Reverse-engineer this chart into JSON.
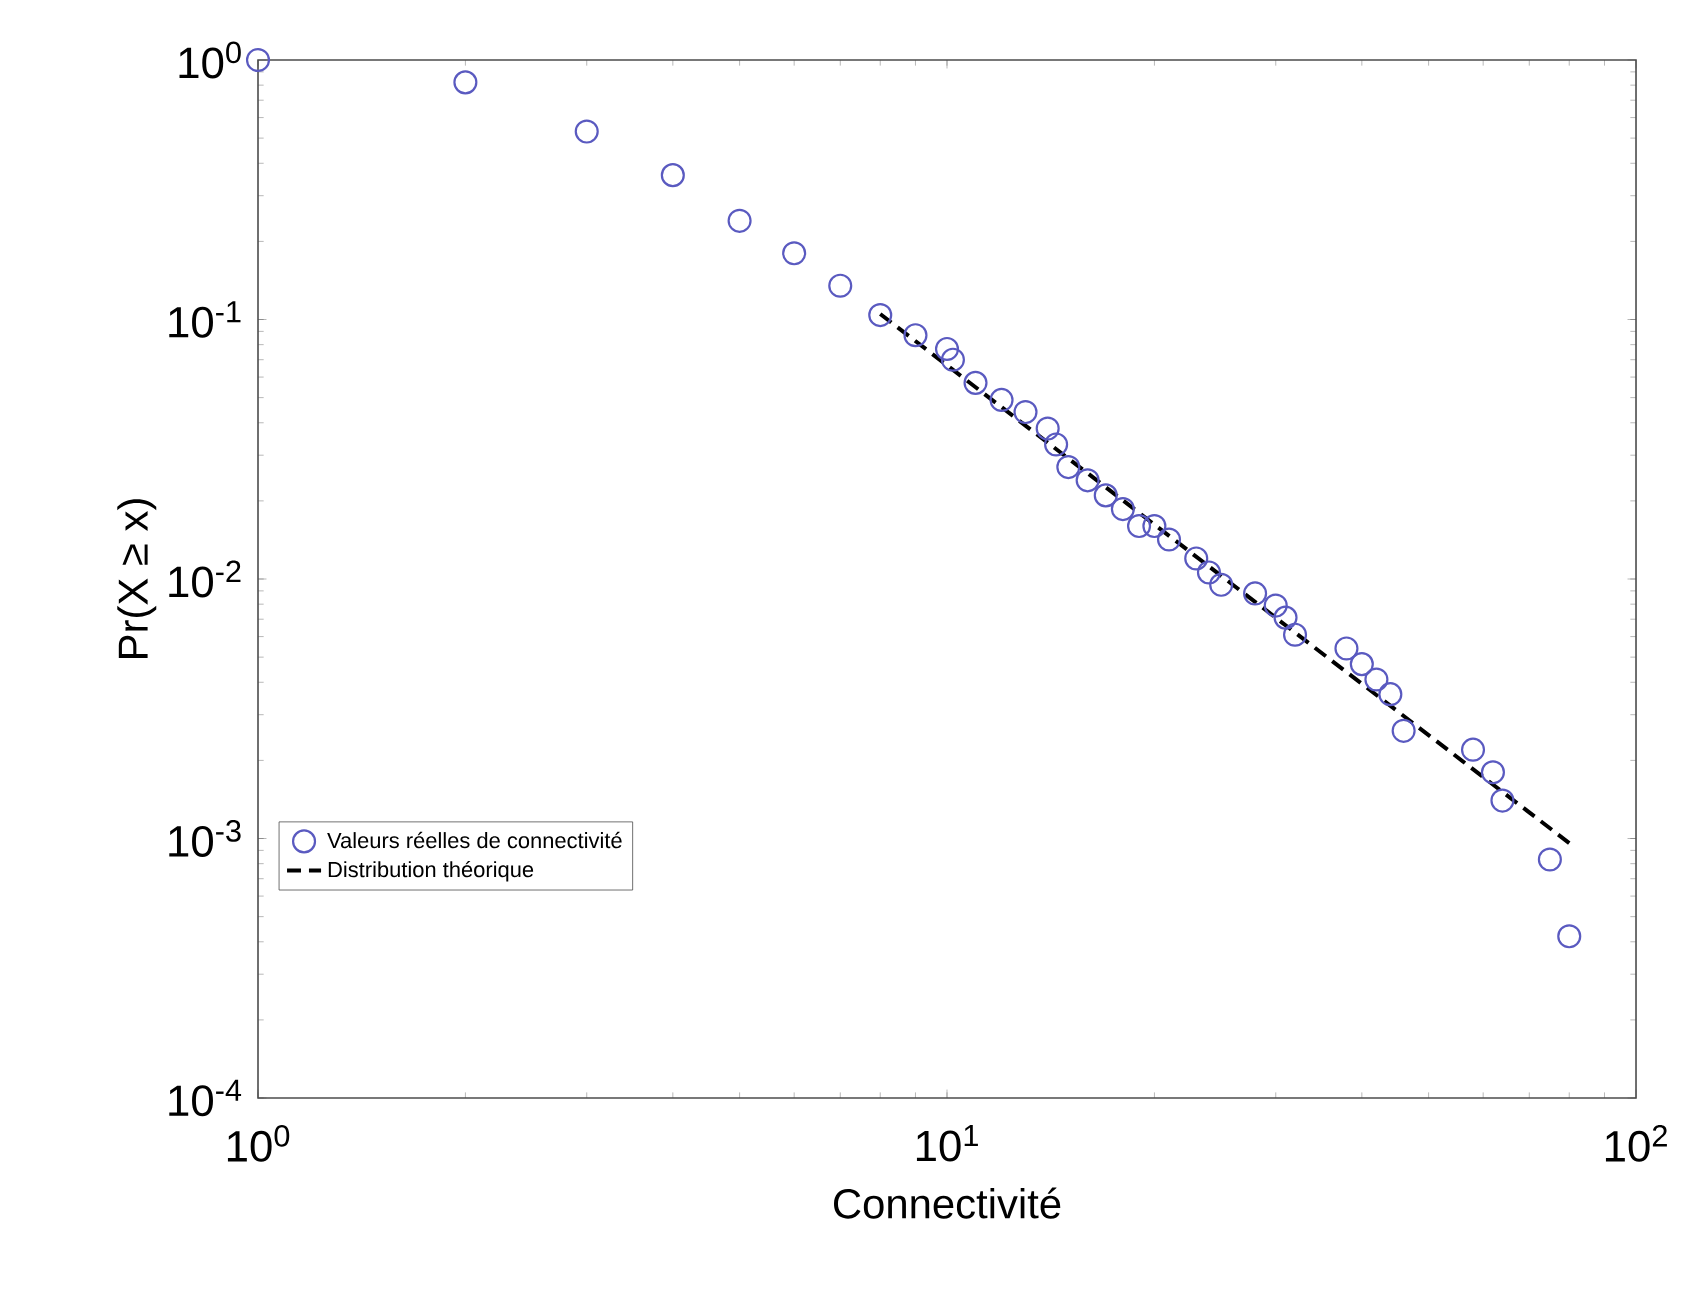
{
  "chart_data": {
    "type": "scatter",
    "xlabel": "Connectivité",
    "ylabel": "Pr(X ≥ x)",
    "log": "xy",
    "grid": false,
    "legend": "bottom left",
    "xlim": [
      1,
      100
    ],
    "ylim": [
      0.0001,
      1
    ],
    "xticks": [
      {
        "value": 1,
        "label": "10$^{0}$"
      },
      {
        "value": 10,
        "label": "10$^{1}$"
      },
      {
        "value": 100,
        "label": "10$^{2}$"
      }
    ],
    "yticks": [
      {
        "value": 0.0001,
        "label": "10$^{-4}$"
      },
      {
        "value": 0.001,
        "label": "10$^{-3}$"
      },
      {
        "value": 0.01,
        "label": "10$^{-2}$"
      },
      {
        "value": 0.1,
        "label": "10$^{-1}$"
      },
      {
        "value": 1,
        "label": "10$^{0}$"
      }
    ],
    "series": [
      {
        "name": "Valeurs réelles de connectivité",
        "marker": "circle",
        "color": "#5a5ac0",
        "x": [
          1,
          2,
          3,
          4,
          5,
          6,
          7,
          8,
          9,
          10,
          10.2,
          11,
          12,
          13,
          14,
          14.4,
          15,
          16,
          17,
          18,
          19,
          20,
          21,
          23,
          24,
          25,
          28,
          30,
          31,
          32,
          38,
          40,
          42,
          44,
          46,
          58,
          62,
          64,
          75,
          80
        ],
        "values": [
          1,
          0.82,
          0.53,
          0.36,
          0.24,
          0.18,
          0.135,
          0.104,
          0.087,
          0.077,
          0.07,
          0.057,
          0.049,
          0.044,
          0.038,
          0.033,
          0.027,
          0.024,
          0.021,
          0.0186,
          0.016,
          0.016,
          0.0142,
          0.012,
          0.0106,
          0.0095,
          0.0088,
          0.0079,
          0.0071,
          0.0061,
          0.0054,
          0.0047,
          0.0041,
          0.0036,
          0.0026,
          0.0022,
          0.0018,
          0.0014,
          0.00083,
          0.00042
        ]
      },
      {
        "name": "Distribution théorique",
        "type": "line",
        "color": "#000000",
        "line_style": "dashed",
        "x": [
          8,
          80
        ],
        "values": [
          0.105,
          0.00096
        ]
      }
    ]
  }
}
